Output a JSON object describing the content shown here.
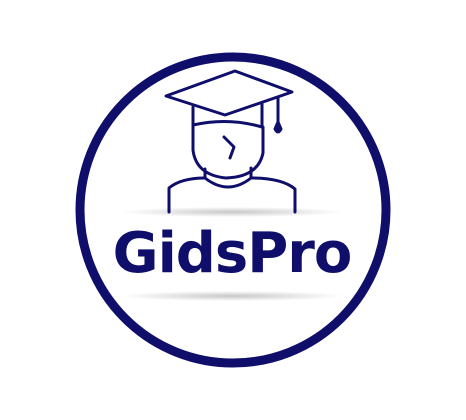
{
  "logo": {
    "name": "GidsPro",
    "brand_color": "#0f0f6b",
    "background": "#ffffff",
    "icon": "graduate-with-mortarboard-icon"
  }
}
